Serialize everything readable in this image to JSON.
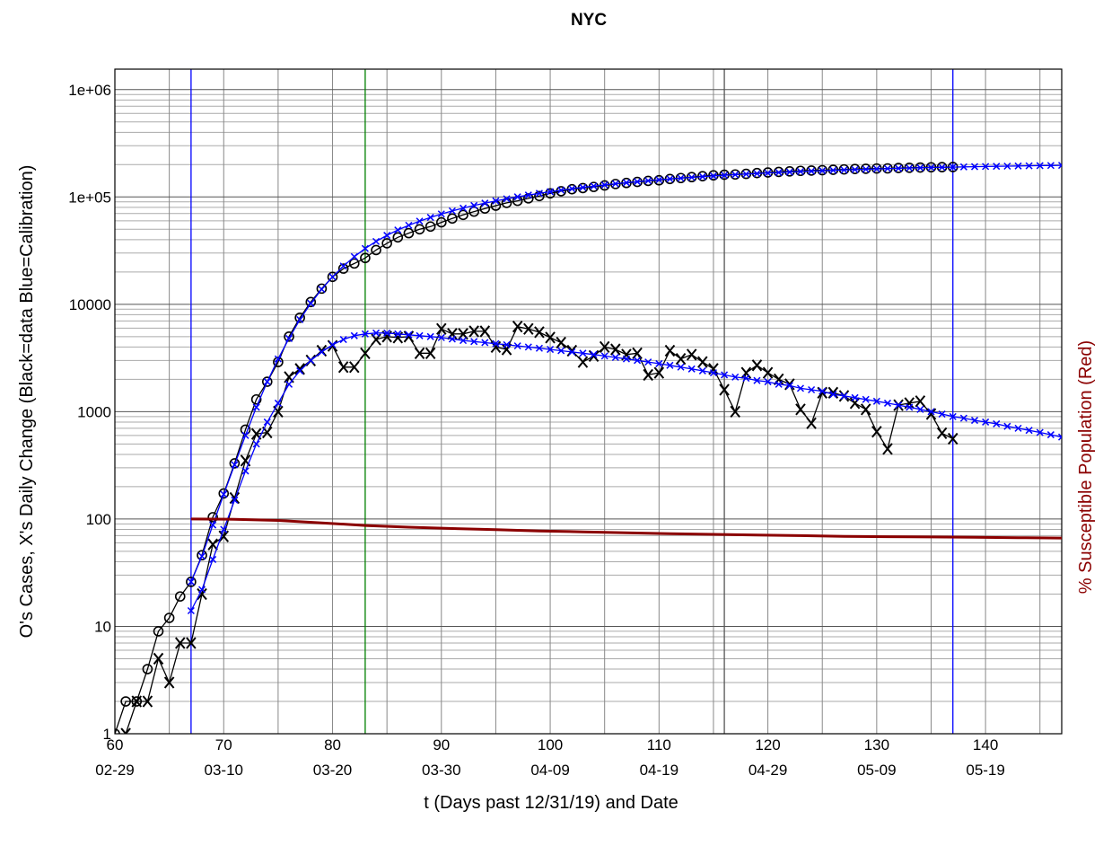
{
  "chart_data": {
    "type": "line",
    "title": "NYC",
    "xlabel": "t (Days past 12/31/19) and Date",
    "ylabel": "O's Cases, X's Daily Change (Black=data Blue=Calibration)",
    "y2label": "% Susceptible Population (Red)",
    "y2label_color": "#8b0000",
    "log_y": true,
    "grid": true,
    "xlim": [
      60,
      147
    ],
    "xticks": [
      60,
      70,
      80,
      90,
      100,
      110,
      120,
      130,
      140
    ],
    "xtick_dates": [
      "02-29",
      "03-10",
      "03-20",
      "03-30",
      "04-09",
      "04-19",
      "04-29",
      "05-09",
      "05-19"
    ],
    "xgrid": [
      60,
      65,
      70,
      75,
      80,
      85,
      90,
      95,
      100,
      105,
      110,
      115,
      120,
      125,
      130,
      135,
      140,
      145
    ],
    "ylim": [
      1,
      1550000
    ],
    "yticks": [
      1,
      10,
      100,
      1000,
      10000,
      {
        "value": 100000,
        "label": "1e+05"
      },
      {
        "value": 1000000,
        "label": "1e+06"
      }
    ],
    "minor_grid_multiples": [
      2,
      3,
      4,
      5,
      6,
      7,
      8,
      9
    ],
    "vlines": [
      {
        "x": 67,
        "color": "#0000ff"
      },
      {
        "x": 83,
        "color": "#008000"
      },
      {
        "x": 116,
        "color": "#555555"
      },
      {
        "x": 137,
        "color": "#0000ff"
      }
    ],
    "series": [
      {
        "color": "#000000",
        "marker": "o",
        "x": [
          60,
          61,
          62,
          63,
          64,
          65,
          66,
          67,
          68,
          69,
          70,
          71,
          72,
          73,
          74,
          75,
          76,
          77,
          78,
          79,
          80,
          81,
          82,
          83,
          84,
          85,
          86,
          87,
          88,
          89,
          90,
          91,
          92,
          93,
          94,
          95,
          96,
          97,
          98,
          99,
          100,
          101,
          102,
          103,
          104,
          105,
          106,
          107,
          108,
          109,
          110,
          111,
          112,
          113,
          114,
          115,
          116,
          117,
          118,
          119,
          120,
          121,
          122,
          123,
          124,
          125,
          126,
          127,
          128,
          129,
          130,
          131,
          132,
          133,
          134,
          135,
          136,
          137
        ],
        "values": [
          1,
          2,
          2,
          4,
          9,
          12,
          19,
          26,
          46,
          104,
          173,
          330,
          680,
          1300,
          1900,
          2900,
          5000,
          7500,
          10500,
          14000,
          18000,
          21500,
          24000,
          27000,
          32000,
          37000,
          42000,
          46000,
          50000,
          53000,
          58000,
          63000,
          68000,
          73000,
          78000,
          83000,
          88000,
          92000,
          97000,
          102000,
          108000,
          113000,
          118000,
          121000,
          124000,
          128000,
          132000,
          135000,
          138000,
          141000,
          143000,
          147000,
          150000,
          153000,
          156000,
          159000,
          161000,
          162000,
          164000,
          167000,
          169000,
          171000,
          173000,
          175000,
          176000,
          177500,
          179000,
          180500,
          182000,
          183000,
          184000,
          184500,
          186000,
          187000,
          188000,
          189000,
          189500,
          190000
        ]
      },
      {
        "color": "#000000",
        "marker": "X",
        "x": [
          61,
          62,
          63,
          64,
          65,
          66,
          67,
          68,
          69,
          70,
          71,
          72,
          73,
          74,
          75,
          76,
          77,
          78,
          79,
          80,
          81,
          82,
          83,
          84,
          85,
          86,
          87,
          88,
          89,
          90,
          91,
          92,
          93,
          94,
          95,
          96,
          97,
          98,
          99,
          100,
          101,
          102,
          103,
          104,
          105,
          106,
          107,
          108,
          109,
          110,
          111,
          112,
          113,
          114,
          115,
          116,
          117,
          118,
          119,
          120,
          121,
          122,
          123,
          124,
          125,
          126,
          127,
          128,
          129,
          130,
          131,
          132,
          133,
          134,
          135,
          136,
          137
        ],
        "values": [
          1,
          2,
          2,
          5,
          3,
          7,
          7,
          20,
          58,
          69,
          157,
          350,
          620,
          640,
          1000,
          2100,
          2500,
          3000,
          3700,
          4100,
          2600,
          2600,
          3500,
          4700,
          5000,
          4900,
          5000,
          3500,
          3500,
          5900,
          5300,
          5300,
          5600,
          5600,
          4000,
          3800,
          6200,
          5900,
          5500,
          4900,
          4400,
          3700,
          2900,
          3300,
          4000,
          3800,
          3400,
          3500,
          2200,
          2300,
          3700,
          3100,
          3400,
          2900,
          2500,
          1600,
          1000,
          2300,
          2700,
          2300,
          2000,
          1800,
          1050,
          780,
          1500,
          1500,
          1400,
          1200,
          1050,
          650,
          450,
          1150,
          1200,
          1250,
          950,
          630,
          560
        ]
      },
      {
        "color": "#0000ff",
        "marker": "x",
        "x": [
          67,
          68,
          69,
          70,
          71,
          72,
          73,
          74,
          75,
          76,
          77,
          78,
          79,
          80,
          81,
          82,
          83,
          84,
          85,
          86,
          87,
          88,
          89,
          90,
          91,
          92,
          93,
          94,
          95,
          96,
          97,
          98,
          99,
          100,
          101,
          102,
          103,
          104,
          105,
          106,
          107,
          108,
          109,
          110,
          111,
          112,
          113,
          114,
          115,
          116,
          117,
          118,
          119,
          120,
          121,
          122,
          123,
          124,
          125,
          126,
          127,
          128,
          129,
          130,
          131,
          132,
          133,
          134,
          135,
          136,
          137,
          138,
          139,
          140,
          141,
          142,
          143,
          144,
          145,
          146,
          147
        ],
        "values": [
          26,
          45,
          88,
          170,
          320,
          600,
          1100,
          1900,
          3100,
          4800,
          7200,
          10200,
          13800,
          18000,
          22700,
          27800,
          33100,
          38500,
          43900,
          49200,
          54400,
          59500,
          64500,
          69400,
          74100,
          78700,
          83200,
          87600,
          91900,
          96100,
          100200,
          104200,
          108100,
          111900,
          115600,
          119200,
          122700,
          126100,
          129400,
          132600,
          135700,
          138700,
          141600,
          144400,
          147100,
          149700,
          152200,
          154600,
          156900,
          159100,
          161200,
          163200,
          165200,
          167100,
          168900,
          170700,
          172400,
          174000,
          175500,
          177000,
          178400,
          179700,
          181000,
          182300,
          183500,
          184700,
          185800,
          186900,
          187900,
          188800,
          189700,
          190600,
          191400,
          192200,
          193000,
          193700,
          194400,
          195100,
          195800,
          196400,
          197000
        ]
      },
      {
        "color": "#0000ff",
        "marker": "x",
        "x": [
          67,
          68,
          69,
          70,
          71,
          72,
          73,
          74,
          75,
          76,
          77,
          78,
          79,
          80,
          81,
          82,
          83,
          84,
          85,
          86,
          87,
          88,
          89,
          90,
          91,
          92,
          93,
          94,
          95,
          96,
          97,
          98,
          99,
          100,
          101,
          102,
          103,
          104,
          105,
          106,
          107,
          108,
          109,
          110,
          111,
          112,
          113,
          114,
          115,
          116,
          117,
          118,
          119,
          120,
          121,
          122,
          123,
          124,
          125,
          126,
          127,
          128,
          129,
          130,
          131,
          132,
          133,
          134,
          135,
          136,
          137,
          138,
          139,
          140,
          141,
          142,
          143,
          144,
          145,
          146,
          147
        ],
        "values": [
          14,
          22,
          42,
          80,
          150,
          280,
          500,
          800,
          1200,
          1800,
          2400,
          3000,
          3600,
          4200,
          4700,
          5100,
          5300,
          5400,
          5400,
          5300,
          5200,
          5100,
          5000,
          4900,
          4750,
          4600,
          4500,
          4400,
          4300,
          4200,
          4100,
          4000,
          3900,
          3800,
          3700,
          3600,
          3500,
          3400,
          3300,
          3200,
          3100,
          3000,
          2900,
          2800,
          2700,
          2600,
          2500,
          2400,
          2300,
          2200,
          2100,
          2050,
          1950,
          1900,
          1800,
          1750,
          1650,
          1600,
          1550,
          1450,
          1400,
          1350,
          1300,
          1250,
          1200,
          1150,
          1100,
          1050,
          1000,
          950,
          900,
          870,
          830,
          800,
          770,
          730,
          700,
          670,
          640,
          610,
          580
        ]
      },
      {
        "color": "#8b0000",
        "marker": "none",
        "x": [
          67,
          71,
          75,
          79,
          83,
          87,
          91,
          95,
          99,
          103,
          107,
          111,
          115,
          119,
          123,
          127,
          131,
          135,
          139,
          143,
          147
        ],
        "values": [
          100,
          99.5,
          97,
          92,
          87,
          84,
          81.5,
          79.5,
          77.5,
          76,
          74.5,
          73,
          72,
          71,
          70,
          69,
          68.5,
          68,
          67.5,
          67,
          66.5
        ]
      }
    ]
  }
}
